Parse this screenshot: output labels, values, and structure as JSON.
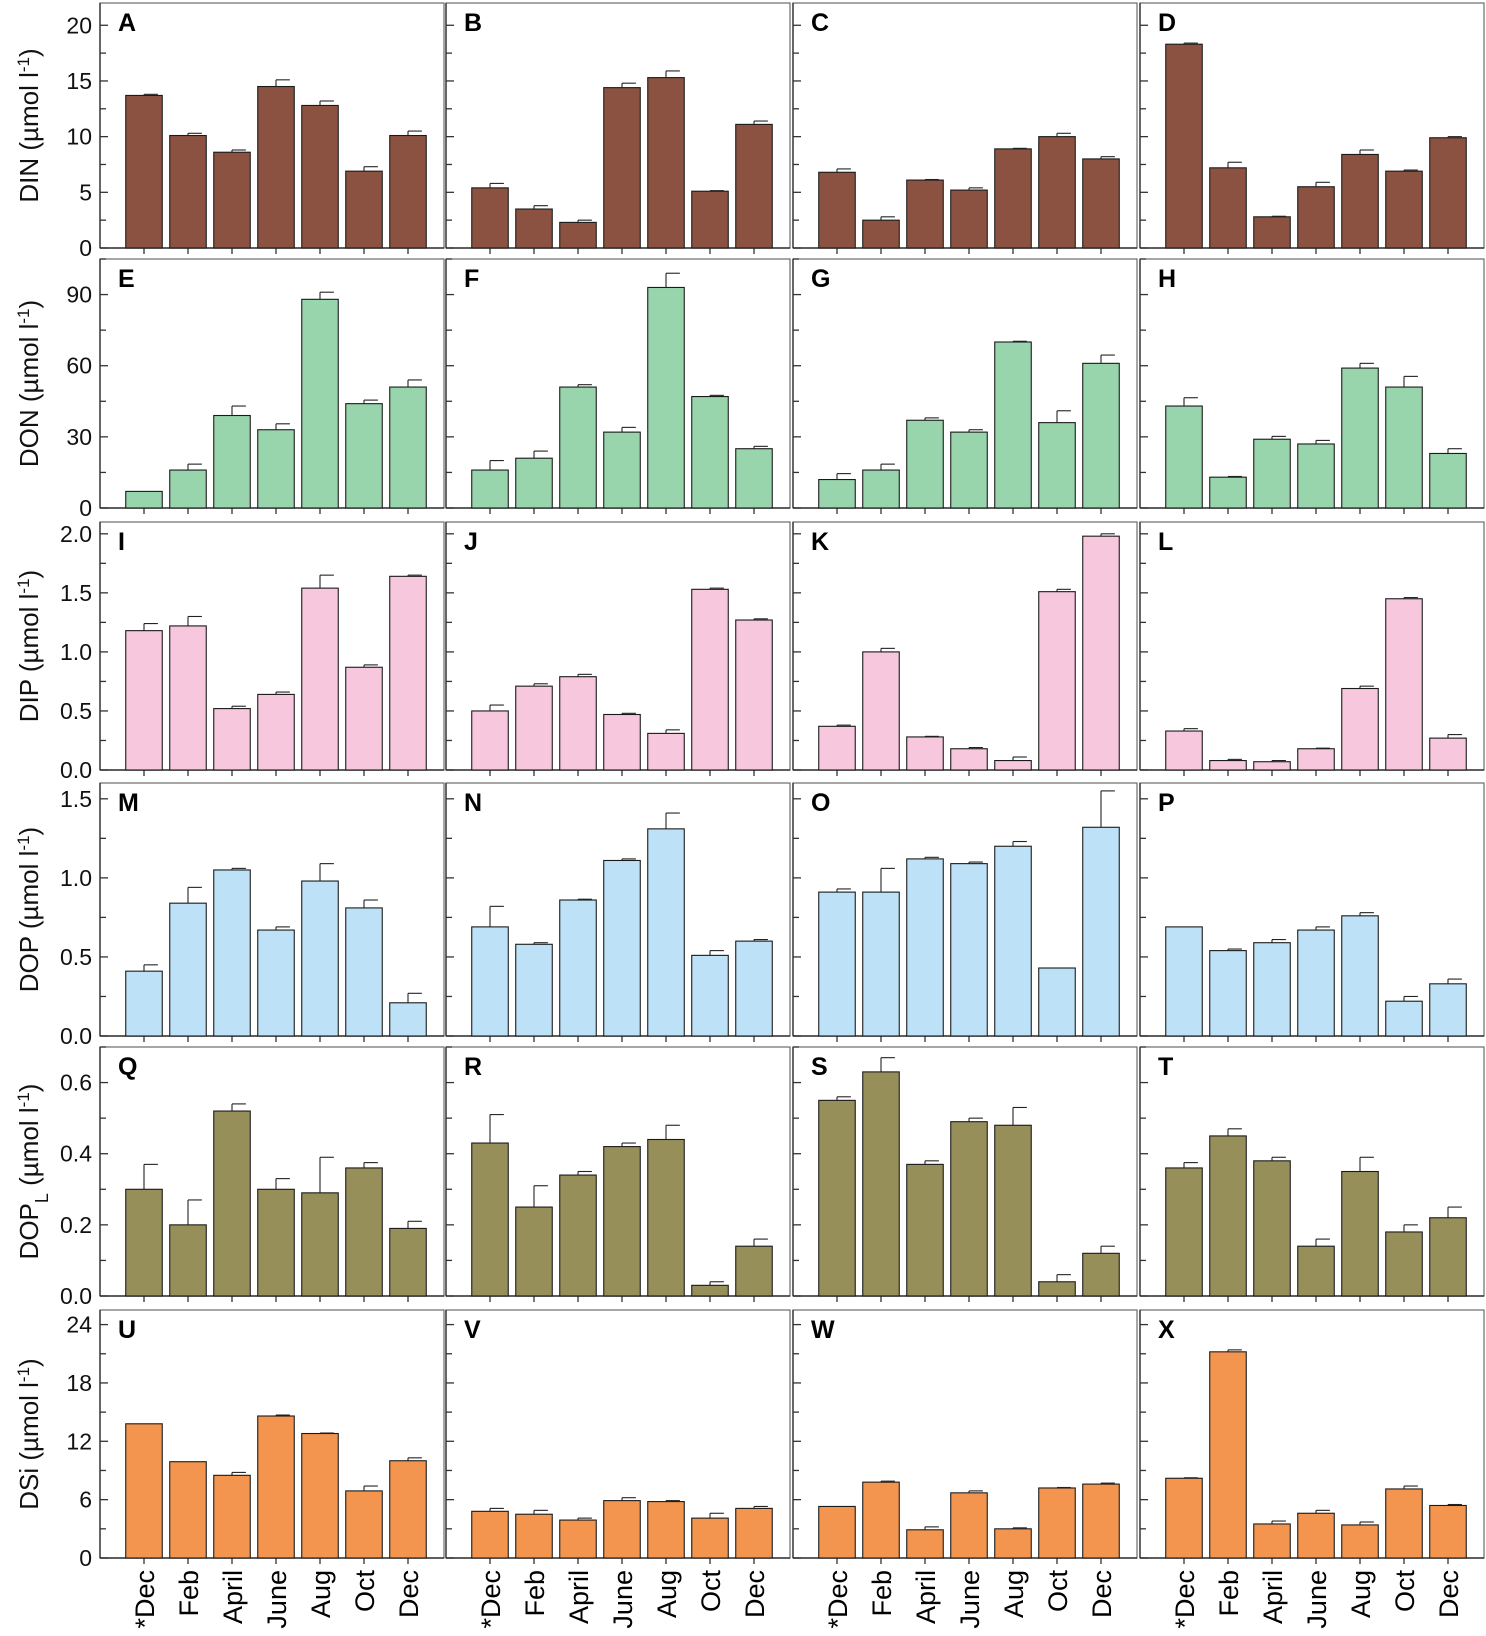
{
  "chart_data": {
    "type": "bar",
    "layout": "grid 6 rows x 4 columns",
    "categories": [
      "*Dec",
      "Feb",
      "April",
      "June",
      "Aug",
      "Oct",
      "Dec"
    ],
    "rows": [
      {
        "variable": "DIN",
        "ylabel": "DIN (µmol l⁻¹)",
        "ylabel_main": "DIN (µmol l",
        "ylabel_sup": "-1",
        "ylabel_sub": "",
        "ylabel_close": ")",
        "color": "#8B5241",
        "ylim": [
          0,
          22
        ],
        "yticks": [
          0,
          5,
          10,
          15,
          20
        ],
        "ytick_labels": [
          "0",
          "5",
          "10",
          "15",
          "20"
        ],
        "panels": [
          {
            "letter": "A",
            "values": [
              13.7,
              10.1,
              8.6,
              14.5,
              12.8,
              6.9,
              10.1
            ],
            "errors": [
              0.1,
              0.2,
              0.2,
              0.6,
              0.4,
              0.4,
              0.4
            ]
          },
          {
            "letter": "B",
            "values": [
              5.4,
              3.5,
              2.3,
              14.4,
              15.3,
              5.1,
              11.1
            ],
            "errors": [
              0.4,
              0.3,
              0.2,
              0.4,
              0.6,
              0.05,
              0.3
            ]
          },
          {
            "letter": "C",
            "values": [
              6.8,
              2.5,
              6.1,
              5.2,
              8.9,
              10.0,
              8.0
            ],
            "errors": [
              0.3,
              0.3,
              0.05,
              0.2,
              0.05,
              0.3,
              0.2
            ]
          },
          {
            "letter": "D",
            "values": [
              18.3,
              7.2,
              2.8,
              5.5,
              8.4,
              6.9,
              9.9
            ],
            "errors": [
              0.1,
              0.5,
              0.05,
              0.4,
              0.4,
              0.1,
              0.1
            ]
          }
        ]
      },
      {
        "variable": "DON",
        "ylabel": "DON (µmol l⁻¹)",
        "ylabel_main": "DON (µmol l",
        "ylabel_sup": "-1",
        "ylabel_sub": "",
        "ylabel_close": ")",
        "color": "#98D4AC",
        "ylim": [
          0,
          105
        ],
        "yticks": [
          0,
          30,
          60,
          90
        ],
        "ytick_labels": [
          "0",
          "30",
          "60",
          "90"
        ],
        "panels": [
          {
            "letter": "E",
            "values": [
              7,
              16,
              39,
              33,
              88,
              44,
              51
            ],
            "errors": [
              0,
              2.5,
              4,
              2.5,
              3,
              1.5,
              3
            ]
          },
          {
            "letter": "F",
            "values": [
              16,
              21,
              51,
              32,
              93,
              47,
              25
            ],
            "errors": [
              4,
              3,
              1,
              2,
              6,
              0.5,
              1
            ]
          },
          {
            "letter": "G",
            "values": [
              12,
              16,
              37,
              32,
              70,
              36,
              61
            ],
            "errors": [
              2.5,
              2.5,
              1,
              1,
              0.3,
              5,
              3.5
            ]
          },
          {
            "letter": "H",
            "values": [
              43,
              13,
              29,
              27,
              59,
              51,
              23
            ],
            "errors": [
              3.5,
              0.3,
              1.2,
              1.5,
              2,
              4.5,
              2
            ]
          }
        ]
      },
      {
        "variable": "DIP",
        "ylabel": "DIP (µmol l⁻¹)",
        "ylabel_main": "DIP (µmol l",
        "ylabel_sup": "-1",
        "ylabel_sub": "",
        "ylabel_close": ")",
        "color": "#F6C7DD",
        "ylim": [
          0,
          2.1
        ],
        "yticks": [
          0,
          0.5,
          1.0,
          1.5,
          2.0
        ],
        "ytick_labels": [
          "0.0",
          "0.5",
          "1.0",
          "1.5",
          "2.0"
        ],
        "panels": [
          {
            "letter": "I",
            "values": [
              1.18,
              1.22,
              0.52,
              0.64,
              1.54,
              0.87,
              1.64
            ],
            "errors": [
              0.06,
              0.08,
              0.02,
              0.02,
              0.11,
              0.02,
              0.01
            ]
          },
          {
            "letter": "J",
            "values": [
              0.5,
              0.71,
              0.79,
              0.47,
              0.31,
              1.53,
              1.27
            ],
            "errors": [
              0.05,
              0.02,
              0.02,
              0.01,
              0.03,
              0.01,
              0.01
            ]
          },
          {
            "letter": "K",
            "values": [
              0.37,
              1.0,
              0.28,
              0.18,
              0.08,
              1.51,
              1.98
            ],
            "errors": [
              0.01,
              0.03,
              0.005,
              0.01,
              0.03,
              0.02,
              0.02
            ]
          },
          {
            "letter": "L",
            "values": [
              0.33,
              0.08,
              0.07,
              0.18,
              0.69,
              1.45,
              0.27
            ],
            "errors": [
              0.02,
              0.01,
              0.01,
              0.005,
              0.02,
              0.01,
              0.03
            ]
          }
        ]
      },
      {
        "variable": "DOP",
        "ylabel": "DOP (µmol l⁻¹)",
        "ylabel_main": "DOP (µmol l",
        "ylabel_sup": "-1",
        "ylabel_sub": "",
        "ylabel_close": ")",
        "color": "#BDE2F7",
        "ylim": [
          0,
          1.6
        ],
        "yticks": [
          0,
          0.5,
          1.0,
          1.5
        ],
        "ytick_labels": [
          "0.0",
          "0.5",
          "1.0",
          "1.5"
        ],
        "panels": [
          {
            "letter": "M",
            "values": [
              0.41,
              0.84,
              1.05,
              0.67,
              0.98,
              0.81,
              0.21
            ],
            "errors": [
              0.04,
              0.1,
              0.01,
              0.02,
              0.11,
              0.05,
              0.06
            ]
          },
          {
            "letter": "N",
            "values": [
              0.69,
              0.58,
              0.86,
              1.11,
              1.31,
              0.51,
              0.6
            ],
            "errors": [
              0.13,
              0.01,
              0.005,
              0.01,
              0.1,
              0.03,
              0.01
            ]
          },
          {
            "letter": "O",
            "values": [
              0.91,
              0.91,
              1.12,
              1.09,
              1.2,
              0.43,
              1.32
            ],
            "errors": [
              0.02,
              0.15,
              0.01,
              0.01,
              0.03,
              0,
              0.23
            ]
          },
          {
            "letter": "P",
            "values": [
              0.69,
              0.54,
              0.59,
              0.67,
              0.76,
              0.22,
              0.33
            ],
            "errors": [
              0,
              0.01,
              0.02,
              0.02,
              0.02,
              0.03,
              0.03
            ]
          }
        ]
      },
      {
        "variable": "DOPL",
        "ylabel": "DOPL (µmol l⁻¹)",
        "ylabel_main": "DOP",
        "ylabel_sup": "",
        "ylabel_sub": "L",
        "ylabel_close": " (µmol l",
        "ylabel_tail_sup": "-1",
        "ylabel_tail": ")",
        "color": "#978F5A",
        "ylim": [
          0,
          0.7
        ],
        "yticks": [
          0,
          0.2,
          0.4,
          0.6
        ],
        "ytick_labels": [
          "0.0",
          "0.2",
          "0.4",
          "0.6"
        ],
        "panels": [
          {
            "letter": "Q",
            "values": [
              0.3,
              0.2,
              0.52,
              0.3,
              0.29,
              0.36,
              0.19
            ],
            "errors": [
              0.07,
              0.07,
              0.02,
              0.03,
              0.1,
              0.015,
              0.02
            ]
          },
          {
            "letter": "R",
            "values": [
              0.43,
              0.25,
              0.34,
              0.42,
              0.44,
              0.03,
              0.14
            ],
            "errors": [
              0.08,
              0.06,
              0.01,
              0.01,
              0.04,
              0.01,
              0.02
            ]
          },
          {
            "letter": "S",
            "values": [
              0.55,
              0.63,
              0.37,
              0.49,
              0.48,
              0.04,
              0.12
            ],
            "errors": [
              0.01,
              0.04,
              0.01,
              0.01,
              0.05,
              0.02,
              0.02
            ]
          },
          {
            "letter": "T",
            "values": [
              0.36,
              0.45,
              0.38,
              0.14,
              0.35,
              0.18,
              0.22
            ],
            "errors": [
              0.015,
              0.02,
              0.01,
              0.02,
              0.04,
              0.02,
              0.03
            ]
          }
        ]
      },
      {
        "variable": "DSi",
        "ylabel": "DSi (µmol l⁻¹)",
        "ylabel_main": "DSi (µmol l",
        "ylabel_sup": "-1",
        "ylabel_sub": "",
        "ylabel_close": ")",
        "color": "#F4954F",
        "ylim": [
          0,
          25.5
        ],
        "yticks": [
          0,
          6,
          12,
          18,
          24
        ],
        "ytick_labels": [
          "0",
          "6",
          "12",
          "18",
          "24"
        ],
        "panels": [
          {
            "letter": "U",
            "values": [
              13.8,
              9.9,
              8.5,
              14.6,
              12.8,
              6.9,
              10.0
            ],
            "errors": [
              0,
              0,
              0.3,
              0.1,
              0.05,
              0.5,
              0.3
            ]
          },
          {
            "letter": "V",
            "values": [
              4.8,
              4.5,
              3.9,
              5.9,
              5.8,
              4.1,
              5.1
            ],
            "errors": [
              0.3,
              0.4,
              0.2,
              0.3,
              0.1,
              0.5,
              0.2
            ]
          },
          {
            "letter": "W",
            "values": [
              5.3,
              7.8,
              2.9,
              6.7,
              3.0,
              7.2,
              7.6
            ],
            "errors": [
              0,
              0.1,
              0.3,
              0.2,
              0.1,
              0.05,
              0.1
            ]
          },
          {
            "letter": "X",
            "values": [
              8.2,
              21.2,
              3.5,
              4.6,
              3.4,
              7.1,
              5.4
            ],
            "errors": [
              0.05,
              0.2,
              0.3,
              0.3,
              0.3,
              0.3,
              0.1
            ]
          }
        ]
      }
    ]
  }
}
